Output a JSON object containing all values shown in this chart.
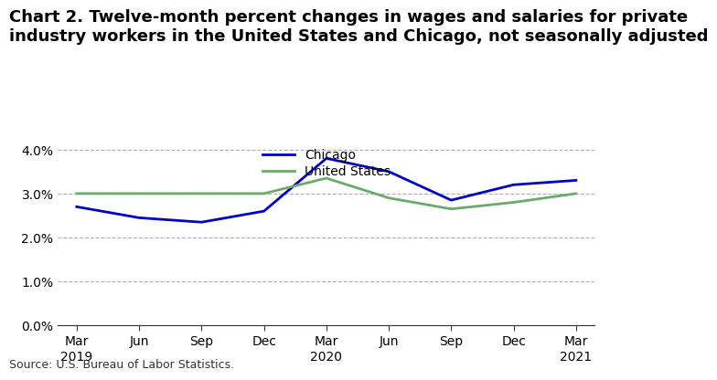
{
  "title": "Chart 2. Twelve-month percent changes in wages and salaries for private\nindustry workers in the United States and Chicago, not seasonally adjusted",
  "source": "Source: U.S. Bureau of Labor Statistics.",
  "x_labels": [
    "Mar\n2019",
    "Jun",
    "Sep",
    "Dec",
    "Mar\n2020",
    "Jun",
    "Sep",
    "Dec",
    "Mar\n2021"
  ],
  "chicago_values": [
    2.7,
    2.45,
    2.35,
    2.6,
    3.8,
    3.5,
    2.85,
    3.2,
    3.3
  ],
  "us_values": [
    3.0,
    3.0,
    3.0,
    3.0,
    3.35,
    2.9,
    2.65,
    2.8,
    3.0
  ],
  "chicago_color": "#0000CC",
  "us_color": "#6aaa6a",
  "ylim": [
    0.0,
    4.2
  ],
  "yticks": [
    0.0,
    1.0,
    2.0,
    3.0,
    4.0
  ],
  "grid_color": "#b0b0b0",
  "background_color": "#ffffff",
  "legend_labels": [
    "Chicago",
    "United States"
  ],
  "title_fontsize": 13,
  "axis_fontsize": 10,
  "source_fontsize": 9
}
